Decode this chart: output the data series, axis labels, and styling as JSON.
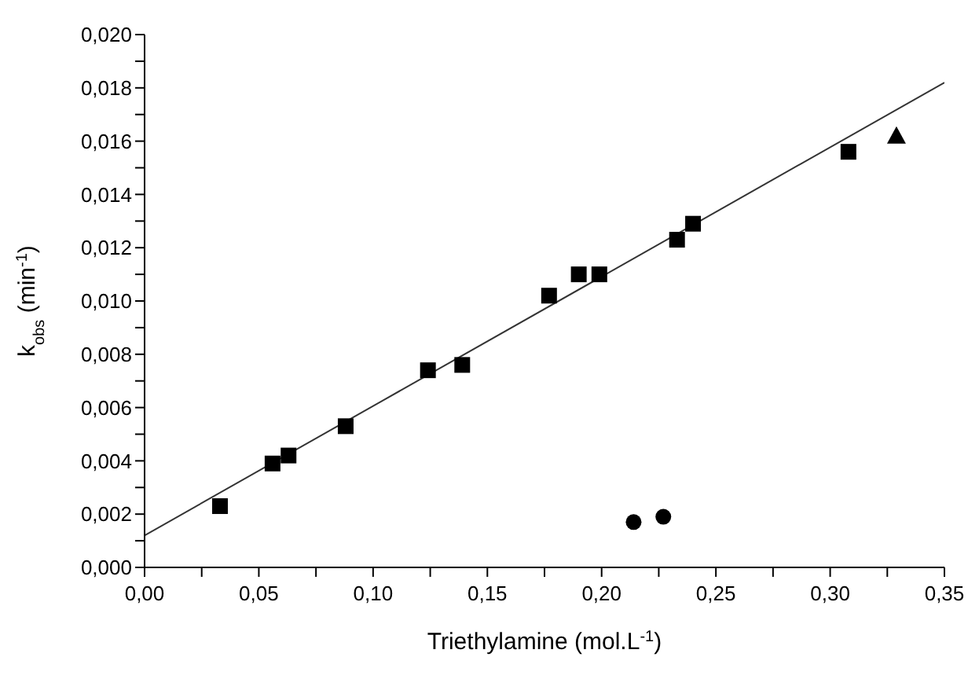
{
  "chart_data": {
    "type": "scatter",
    "xlabel": "Triethylamine (mol.L$^{-1}$)",
    "ylabel": "k$_{obs}$ (min$^{-1}$)",
    "xlim": [
      0,
      0.35
    ],
    "ylim": [
      0,
      0.02
    ],
    "xticks": [
      {
        "value": 0,
        "label": "0,00"
      },
      {
        "value": 0.025,
        "label": null
      },
      {
        "value": 0.05,
        "label": "0,05"
      },
      {
        "value": 0.075,
        "label": null
      },
      {
        "value": 0.1,
        "label": "0,10"
      },
      {
        "value": 0.125,
        "label": null
      },
      {
        "value": 0.15,
        "label": "0,15"
      },
      {
        "value": 0.175,
        "label": null
      },
      {
        "value": 0.2,
        "label": "0,20"
      },
      {
        "value": 0.225,
        "label": null
      },
      {
        "value": 0.25,
        "label": "0,25"
      },
      {
        "value": 0.275,
        "label": null
      },
      {
        "value": 0.3,
        "label": "0,30"
      },
      {
        "value": 0.325,
        "label": null
      },
      {
        "value": 0.35,
        "label": "0,35"
      }
    ],
    "yticks": [
      {
        "value": 0,
        "label": "0,000"
      },
      {
        "value": 0.001,
        "label": null
      },
      {
        "value": 0.002,
        "label": "0,002"
      },
      {
        "value": 0.003,
        "label": null
      },
      {
        "value": 0.004,
        "label": "0,004"
      },
      {
        "value": 0.005,
        "label": null
      },
      {
        "value": 0.006,
        "label": "0,006"
      },
      {
        "value": 0.007,
        "label": null
      },
      {
        "value": 0.008,
        "label": "0,008"
      },
      {
        "value": 0.009,
        "label": null
      },
      {
        "value": 0.01,
        "label": "0,010"
      },
      {
        "value": 0.011,
        "label": null
      },
      {
        "value": 0.012,
        "label": "0,012"
      },
      {
        "value": 0.013,
        "label": null
      },
      {
        "value": 0.014,
        "label": "0,014"
      },
      {
        "value": 0.015,
        "label": null
      },
      {
        "value": 0.016,
        "label": "0,016"
      },
      {
        "value": 0.017,
        "label": null
      },
      {
        "value": 0.018,
        "label": "0,018"
      },
      {
        "value": 0.019,
        "label": null
      },
      {
        "value": 0.02,
        "label": "0,020"
      }
    ],
    "grid": false,
    "series": [
      {
        "marker": "square",
        "color": "#000000",
        "x": [
          0.033,
          0.056,
          0.063,
          0.088,
          0.124,
          0.139,
          0.177,
          0.19,
          0.199,
          0.233,
          0.24,
          0.308
        ],
        "values": [
          0.0023,
          0.0039,
          0.0042,
          0.0053,
          0.0074,
          0.0076,
          0.0102,
          0.011,
          0.011,
          0.0123,
          0.0129,
          0.0156
        ]
      },
      {
        "marker": "circle",
        "color": "#000000",
        "x": [
          0.214,
          0.227
        ],
        "values": [
          0.0017,
          0.0019
        ]
      },
      {
        "marker": "triangle",
        "color": "#000000",
        "x": [
          0.329
        ],
        "values": [
          0.0162
        ]
      },
      {
        "type": "line",
        "marker": "none",
        "color": "#333333",
        "x": [
          0,
          0.35
        ],
        "values": [
          0.0012,
          0.0182
        ]
      }
    ]
  }
}
